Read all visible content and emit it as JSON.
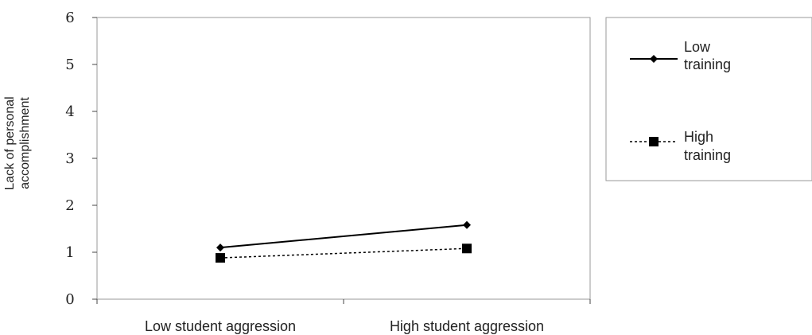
{
  "chart_data": {
    "type": "line",
    "title": "",
    "categories": [
      "Low student aggression",
      "High student aggression"
    ],
    "ylabel": [
      "Lack of personal",
      "accomplishment"
    ],
    "ylim": [
      0,
      6
    ],
    "yticks": [
      "0",
      "1",
      "2",
      "3",
      "4",
      "5",
      "6"
    ],
    "grid": false,
    "legend_position": "right",
    "series": [
      {
        "name": [
          "Low",
          "training"
        ],
        "values": [
          1.1,
          1.58
        ],
        "marker": "diamond",
        "line_style": "solid",
        "color": "#000000"
      },
      {
        "name": [
          "High",
          "training"
        ],
        "values": [
          0.88,
          1.08
        ],
        "marker": "square",
        "line_style": "dashed",
        "color": "#000000"
      }
    ]
  }
}
